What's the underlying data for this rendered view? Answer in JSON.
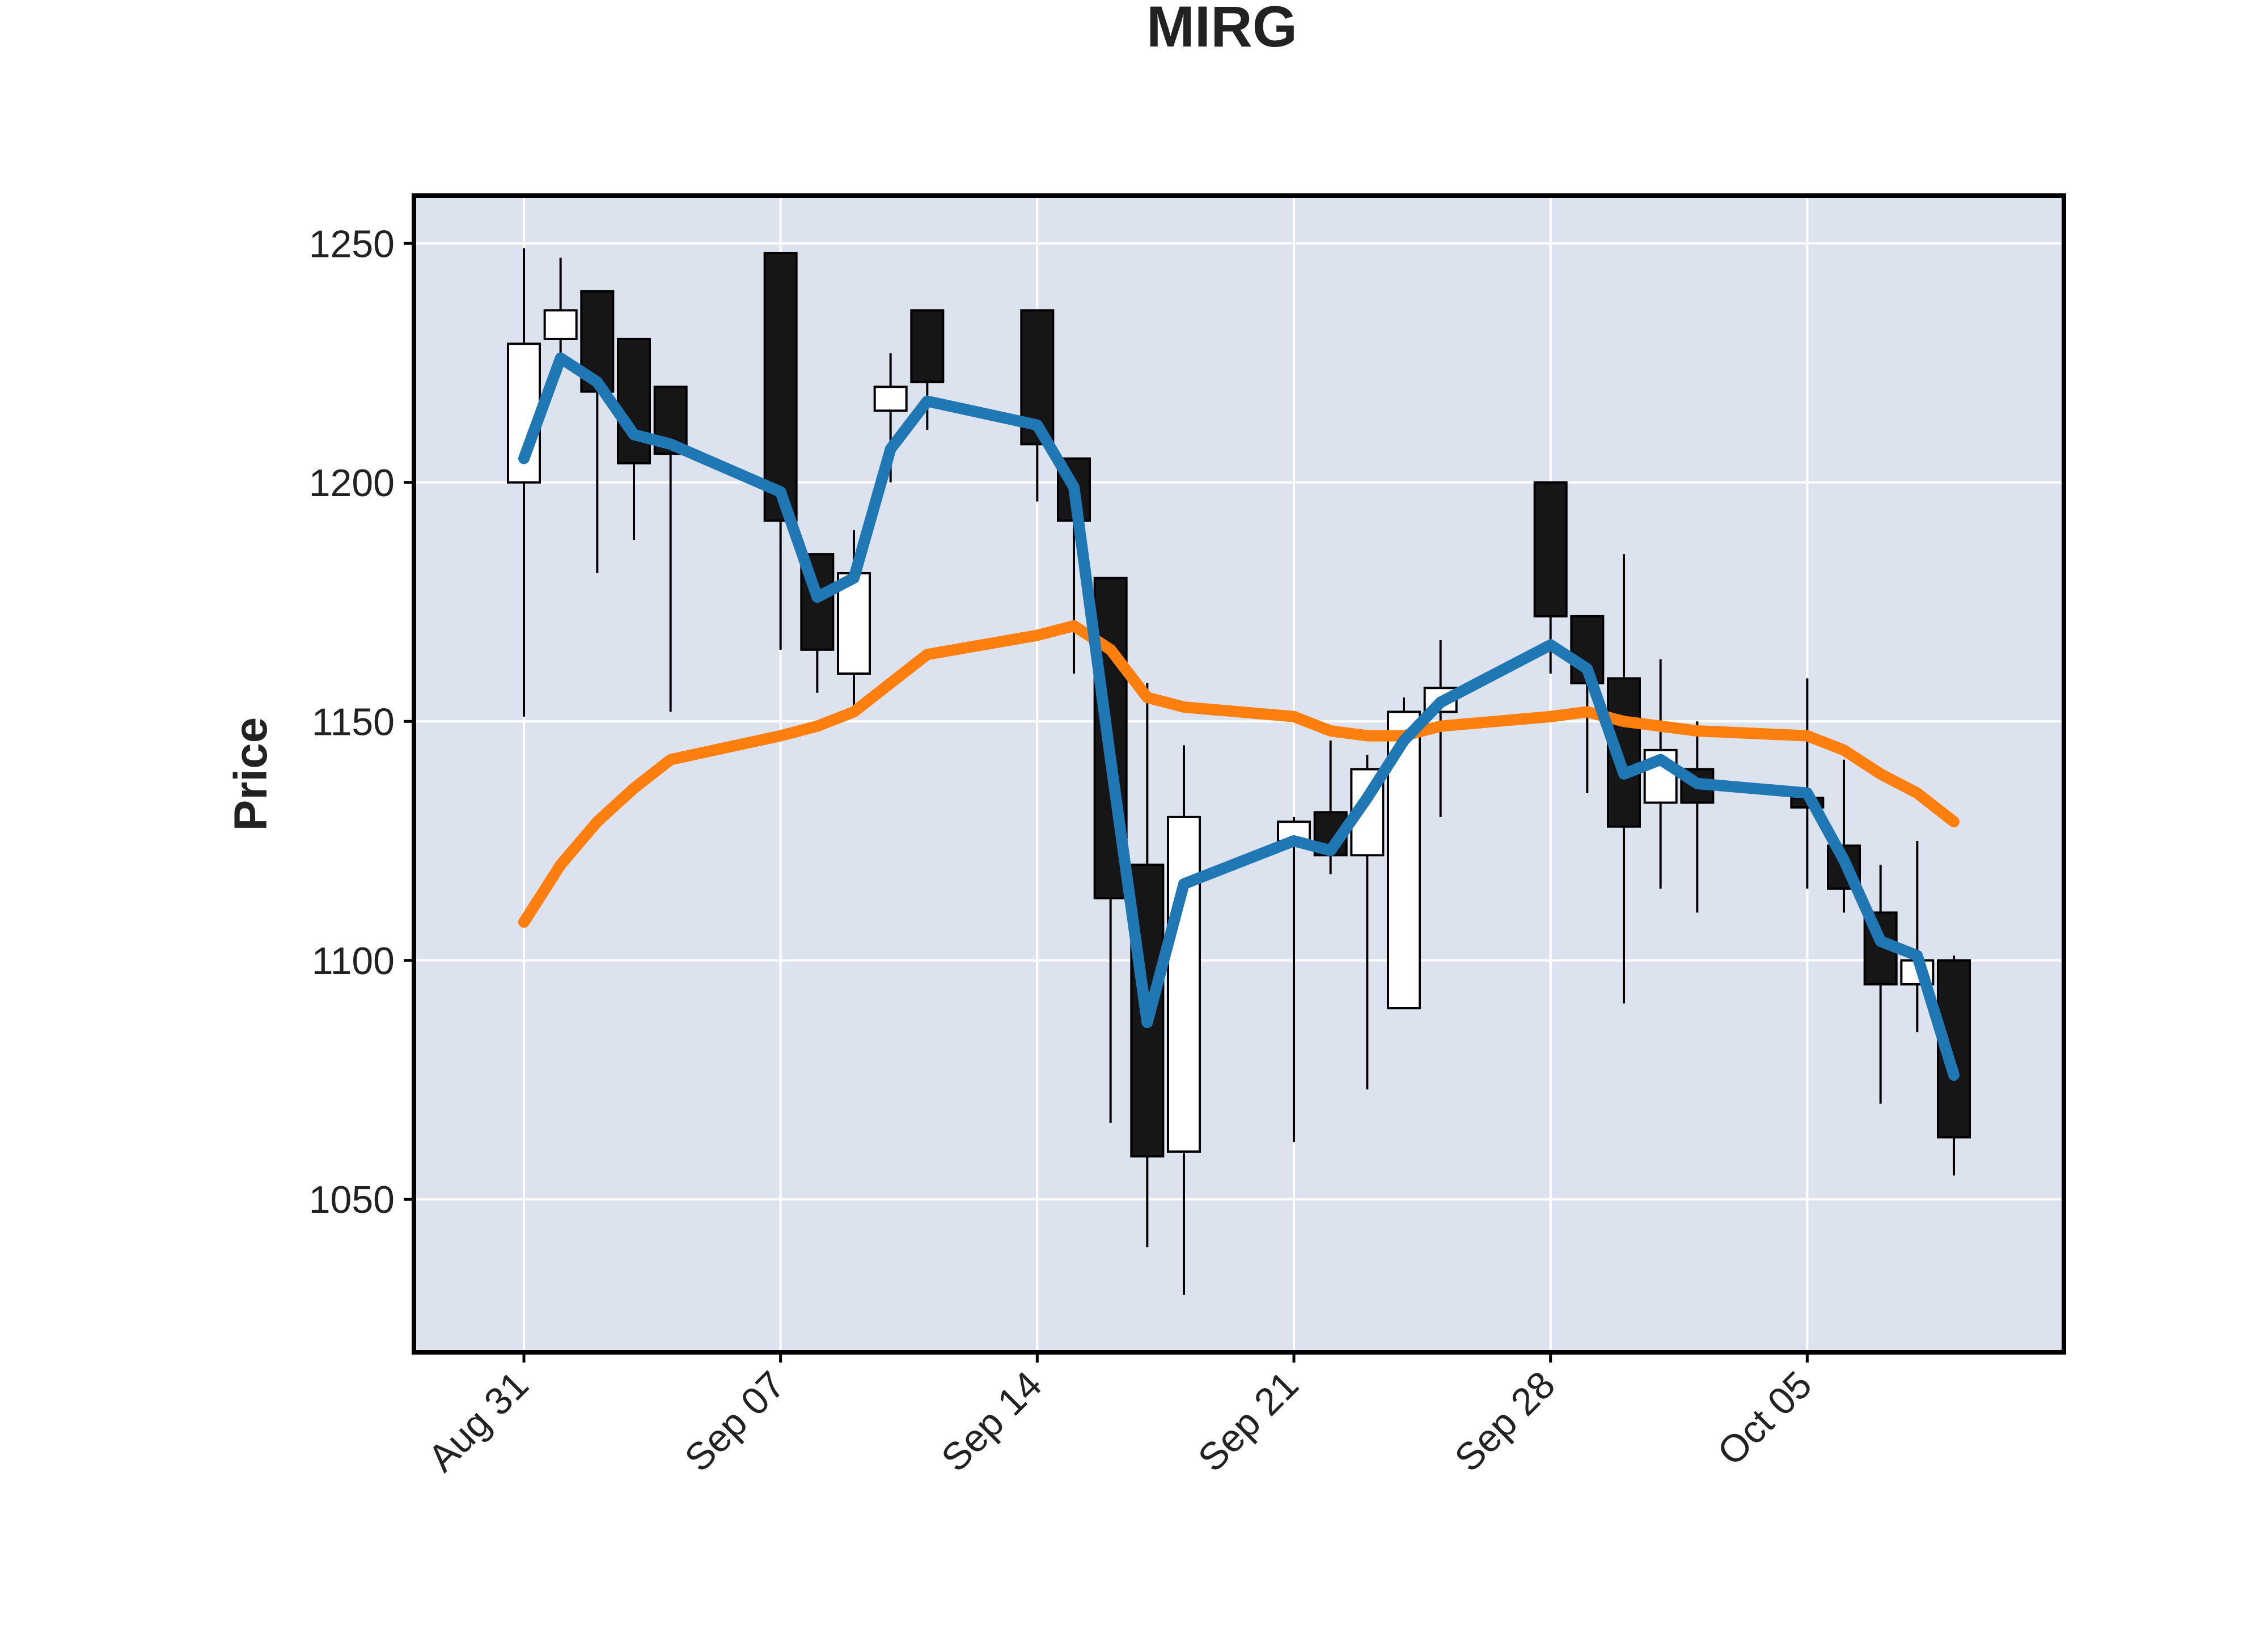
{
  "chart_data": {
    "type": "candlestick",
    "title": "MIRG",
    "ylabel": "Price",
    "xlabel": "",
    "ylim": [
      1018,
      1260
    ],
    "xlim": [
      "2020-08-28",
      "2020-10-12"
    ],
    "yticks": [
      1050,
      1100,
      1150,
      1200,
      1250
    ],
    "xticks": [
      {
        "date": "2020-08-31",
        "label": "Aug 31"
      },
      {
        "date": "2020-09-07",
        "label": "Sep 07"
      },
      {
        "date": "2020-09-14",
        "label": "Sep 14"
      },
      {
        "date": "2020-09-21",
        "label": "Sep 21"
      },
      {
        "date": "2020-09-28",
        "label": "Sep 28"
      },
      {
        "date": "2020-10-05",
        "label": "Oct 05"
      }
    ],
    "grid": true,
    "colors": {
      "background": "#dde3ee",
      "grid": "#ffffff",
      "up_fill": "#ffffff",
      "down_fill": "#161616",
      "edge": "#000000",
      "wick": "#000000",
      "ma_short": "#1f77b4",
      "ma_long": "#ff7f0e"
    },
    "candles": [
      {
        "date": "2020-08-31",
        "open": 1200,
        "high": 1249,
        "low": 1151,
        "close": 1229
      },
      {
        "date": "2020-09-01",
        "open": 1230,
        "high": 1247,
        "low": 1223,
        "close": 1236
      },
      {
        "date": "2020-09-02",
        "open": 1240,
        "high": 1240,
        "low": 1181,
        "close": 1219
      },
      {
        "date": "2020-09-03",
        "open": 1230,
        "high": 1230,
        "low": 1188,
        "close": 1204
      },
      {
        "date": "2020-09-04",
        "open": 1220,
        "high": 1220,
        "low": 1152,
        "close": 1206
      },
      {
        "date": "2020-09-07",
        "open": 1248,
        "high": 1248,
        "low": 1165,
        "close": 1192
      },
      {
        "date": "2020-09-08",
        "open": 1185,
        "high": 1185,
        "low": 1156,
        "close": 1165
      },
      {
        "date": "2020-09-09",
        "open": 1160,
        "high": 1190,
        "low": 1153,
        "close": 1181
      },
      {
        "date": "2020-09-10",
        "open": 1215,
        "high": 1227,
        "low": 1200,
        "close": 1220
      },
      {
        "date": "2020-09-11",
        "open": 1236,
        "high": 1236,
        "low": 1211,
        "close": 1221
      },
      {
        "date": "2020-09-14",
        "open": 1236,
        "high": 1236,
        "low": 1196,
        "close": 1208
      },
      {
        "date": "2020-09-15",
        "open": 1205,
        "high": 1205,
        "low": 1160,
        "close": 1192
      },
      {
        "date": "2020-09-16",
        "open": 1180,
        "high": 1180,
        "low": 1066,
        "close": 1113
      },
      {
        "date": "2020-09-17",
        "open": 1120,
        "high": 1158,
        "low": 1040,
        "close": 1059
      },
      {
        "date": "2020-09-18",
        "open": 1060,
        "high": 1145,
        "low": 1030,
        "close": 1130
      },
      {
        "date": "2020-09-21",
        "open": 1125,
        "high": 1130,
        "low": 1062,
        "close": 1129
      },
      {
        "date": "2020-09-22",
        "open": 1131,
        "high": 1146,
        "low": 1118,
        "close": 1122
      },
      {
        "date": "2020-09-23",
        "open": 1122,
        "high": 1143,
        "low": 1073,
        "close": 1140
      },
      {
        "date": "2020-09-24",
        "open": 1090,
        "high": 1155,
        "low": 1090,
        "close": 1152
      },
      {
        "date": "2020-09-25",
        "open": 1152,
        "high": 1167,
        "low": 1130,
        "close": 1157
      },
      {
        "date": "2020-09-28",
        "open": 1200,
        "high": 1200,
        "low": 1160,
        "close": 1172
      },
      {
        "date": "2020-09-29",
        "open": 1172,
        "high": 1172,
        "low": 1135,
        "close": 1158
      },
      {
        "date": "2020-09-30",
        "open": 1159,
        "high": 1185,
        "low": 1091,
        "close": 1128
      },
      {
        "date": "2020-10-01",
        "open": 1133,
        "high": 1163,
        "low": 1115,
        "close": 1144
      },
      {
        "date": "2020-10-02",
        "open": 1140,
        "high": 1150,
        "low": 1110,
        "close": 1133
      },
      {
        "date": "2020-10-05",
        "open": 1134,
        "high": 1159,
        "low": 1115,
        "close": 1132
      },
      {
        "date": "2020-10-06",
        "open": 1124,
        "high": 1142,
        "low": 1110,
        "close": 1115
      },
      {
        "date": "2020-10-07",
        "open": 1110,
        "high": 1120,
        "low": 1070,
        "close": 1095
      },
      {
        "date": "2020-10-08",
        "open": 1095,
        "high": 1125,
        "low": 1085,
        "close": 1100
      },
      {
        "date": "2020-10-09",
        "open": 1100,
        "high": 1101,
        "low": 1055,
        "close": 1063
      }
    ],
    "series": [
      {
        "values": [
          1205,
          1226,
          1221,
          1210,
          1208,
          1198,
          1176,
          1180,
          1207,
          1217,
          1212,
          1199,
          1142,
          1087,
          1116,
          1125,
          1123,
          1134,
          1146,
          1154,
          1166,
          1161,
          1139,
          1142,
          1137,
          1135,
          1121,
          1104,
          1101,
          1076
        ]
      },
      {
        "values": [
          1108,
          1120,
          1129,
          1136,
          1142,
          1147,
          1149,
          1152,
          1158,
          1164,
          1168,
          1170,
          1165,
          1155,
          1153,
          1151,
          1148,
          1147,
          1147,
          1149,
          1151,
          1152,
          1150,
          1149,
          1148,
          1147,
          1144,
          1139,
          1135,
          1129
        ]
      }
    ]
  }
}
